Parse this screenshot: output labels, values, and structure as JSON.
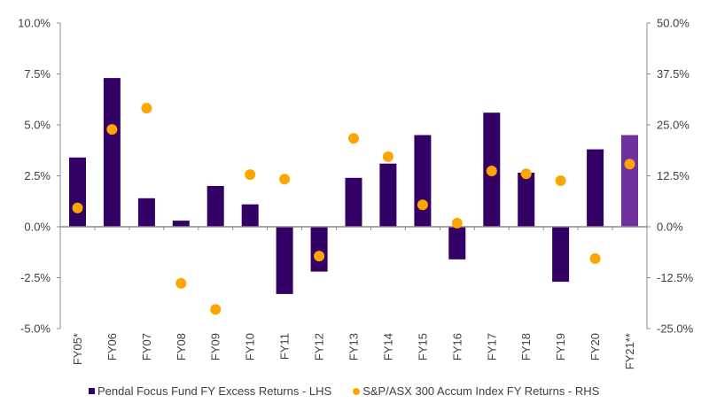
{
  "chart_data": {
    "type": "bar",
    "title": "",
    "xlabel": "",
    "ylabel_left": "",
    "ylabel_right": "",
    "categories": [
      "FY05*",
      "FY06",
      "FY07",
      "FY08",
      "FY09",
      "FY10",
      "FY11",
      "FY12",
      "FY13",
      "FY14",
      "FY15",
      "FY16",
      "FY17",
      "FY18",
      "FY19",
      "FY20",
      "FY21**"
    ],
    "series": [
      {
        "name": "Pendal Focus Fund FY Excess Returns - LHS",
        "type": "bar",
        "axis": "left",
        "color": "#330066",
        "highlight_color": "#7030A0",
        "highlight_index": 16,
        "values": [
          3.4,
          7.3,
          1.4,
          0.3,
          2.0,
          1.1,
          -3.3,
          -2.2,
          2.4,
          3.1,
          4.5,
          -1.6,
          5.6,
          2.65,
          -2.7,
          3.8,
          4.5
        ]
      },
      {
        "name": "S&P/ASX 300 Accum Index FY Returns - RHS",
        "type": "scatter",
        "axis": "right",
        "color": "#FFA500",
        "values": [
          4.6,
          23.9,
          29.1,
          -13.9,
          -20.3,
          12.8,
          11.7,
          -7.2,
          21.7,
          17.2,
          5.4,
          0.9,
          13.7,
          13.0,
          11.3,
          -7.8,
          15.4
        ]
      }
    ],
    "left_axis": {
      "ylim": [
        -5.0,
        10.0
      ],
      "ticks": [
        "10.0%",
        "7.5%",
        "5.0%",
        "2.5%",
        "0.0%",
        "-2.5%",
        "-5.0%"
      ],
      "tick_values": [
        10.0,
        7.5,
        5.0,
        2.5,
        0.0,
        -2.5,
        -5.0
      ]
    },
    "right_axis": {
      "ylim": [
        -25.0,
        50.0
      ],
      "ticks": [
        "50.0%",
        "37.5%",
        "25.0%",
        "12.5%",
        "0.0%",
        "-12.5%",
        "-25.0%"
      ],
      "tick_values": [
        50.0,
        37.5,
        25.0,
        12.5,
        0.0,
        -12.5,
        -25.0
      ]
    },
    "grid": false,
    "legend_position": "bottom"
  },
  "legend": {
    "items": [
      {
        "label": "Pendal Focus Fund FY Excess Returns - LHS",
        "color": "#330066"
      },
      {
        "label": "S&P/ASX 300 Accum Index FY Returns - RHS",
        "color": "#FFA500"
      }
    ]
  }
}
